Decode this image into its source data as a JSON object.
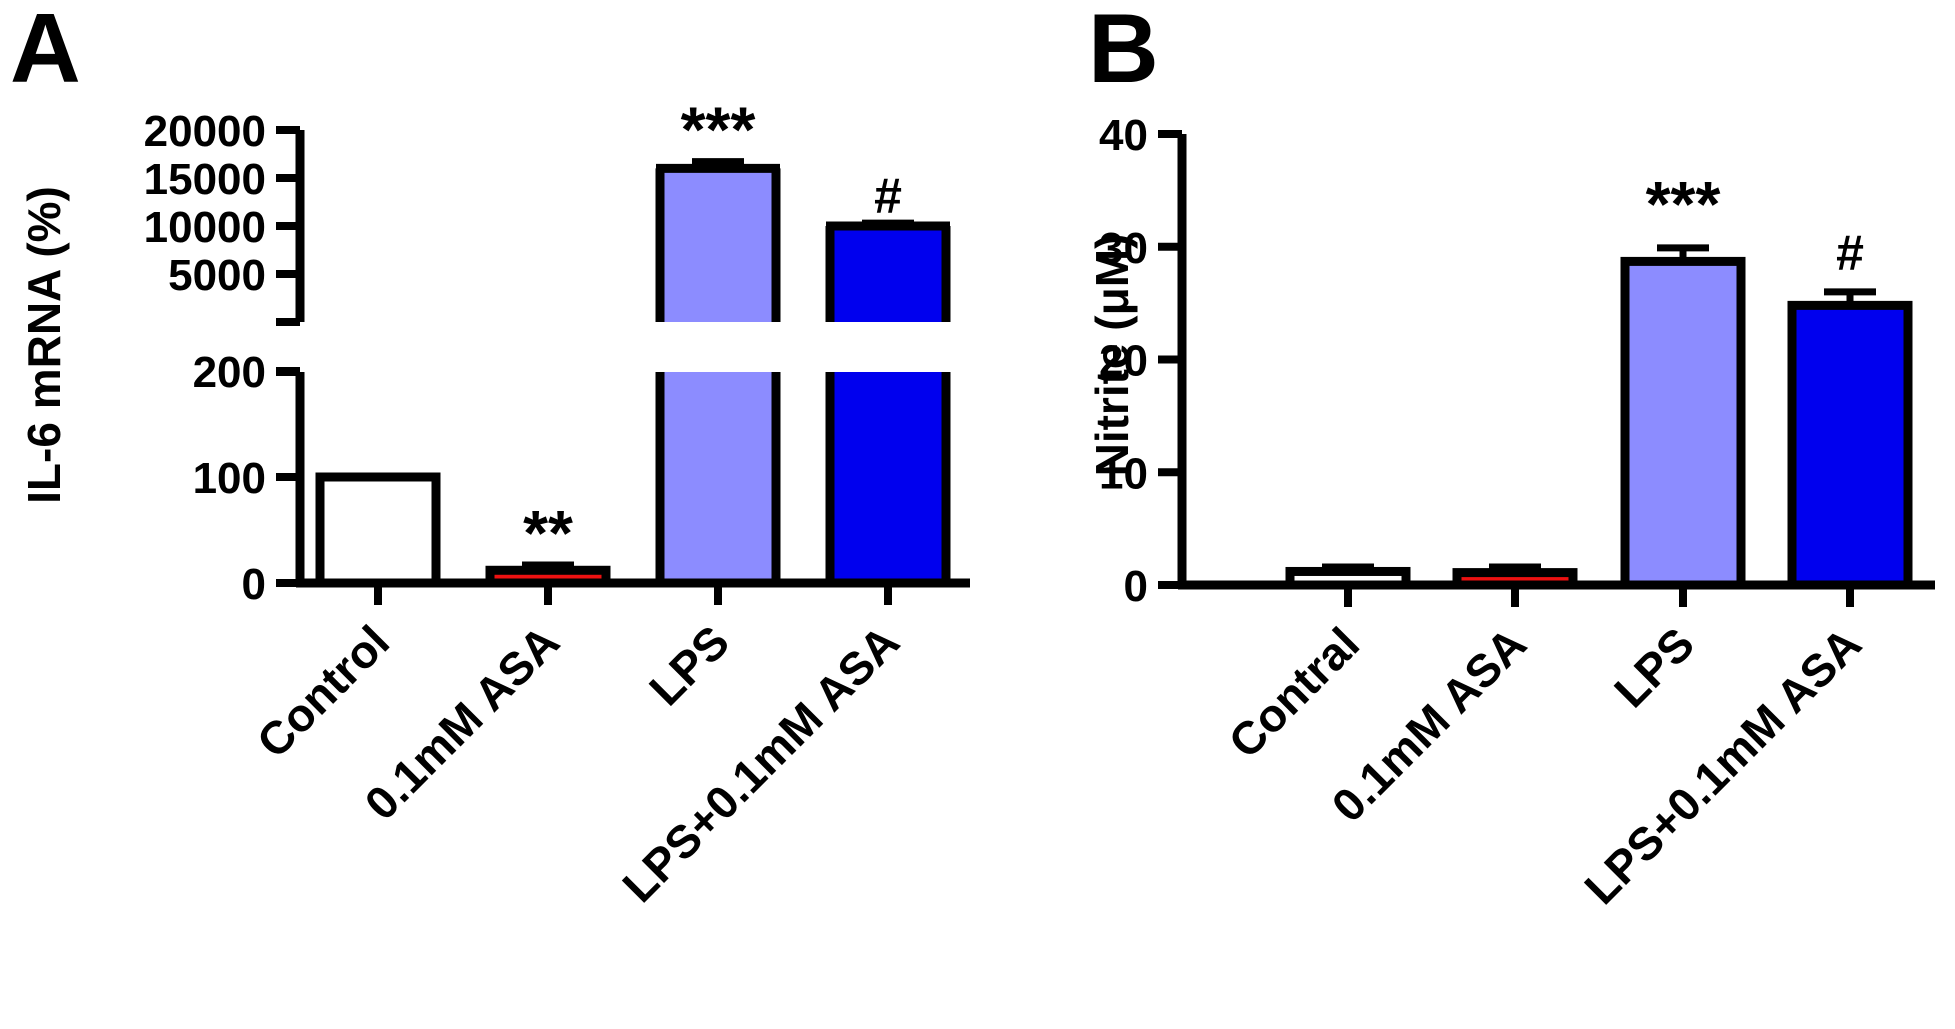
{
  "chart_data": [
    {
      "panel": "A",
      "type": "bar",
      "ylabel": "IL-6 mRNA (%)",
      "categories": [
        "Control",
        "0.1mM ASA",
        "LPS",
        "LPS+0.1mM ASA"
      ],
      "values": [
        100,
        12,
        16000,
        10000
      ],
      "errors": [
        0,
        5,
        700,
        300
      ],
      "fill_colors": [
        "#ffffff",
        "#ee1111",
        "#8c8cff",
        "#0000ee"
      ],
      "significance": [
        "",
        "**",
        "***",
        "#"
      ],
      "broken_axis": true,
      "lower_segment": {
        "ylim": [
          0,
          200
        ],
        "ticks": [
          "0",
          "100",
          "200"
        ],
        "tick_values": [
          0,
          100,
          200
        ]
      },
      "upper_segment": {
        "ylim": [
          0,
          20000
        ],
        "ticks": [
          "5000",
          "10000",
          "15000",
          "20000"
        ],
        "tick_values": [
          5000,
          10000,
          15000,
          20000
        ]
      }
    },
    {
      "panel": "B",
      "type": "bar",
      "ylabel": "Nitrite (μM)",
      "categories": [
        "Contral",
        "0.1mM ASA",
        "LPS",
        "LPS+0.1mM ASA"
      ],
      "values": [
        1.2,
        1.1,
        28.7,
        24.8
      ],
      "errors": [
        0.4,
        0.5,
        1.2,
        1.2
      ],
      "fill_colors": [
        "#ffffff",
        "#ee1111",
        "#8c8cff",
        "#0000ee"
      ],
      "significance": [
        "",
        "",
        "***",
        "#"
      ],
      "ylim": [
        0,
        40
      ],
      "ticks": [
        "0",
        "10",
        "20",
        "30",
        "40"
      ],
      "tick_values": [
        0,
        10,
        20,
        30,
        40
      ]
    }
  ]
}
